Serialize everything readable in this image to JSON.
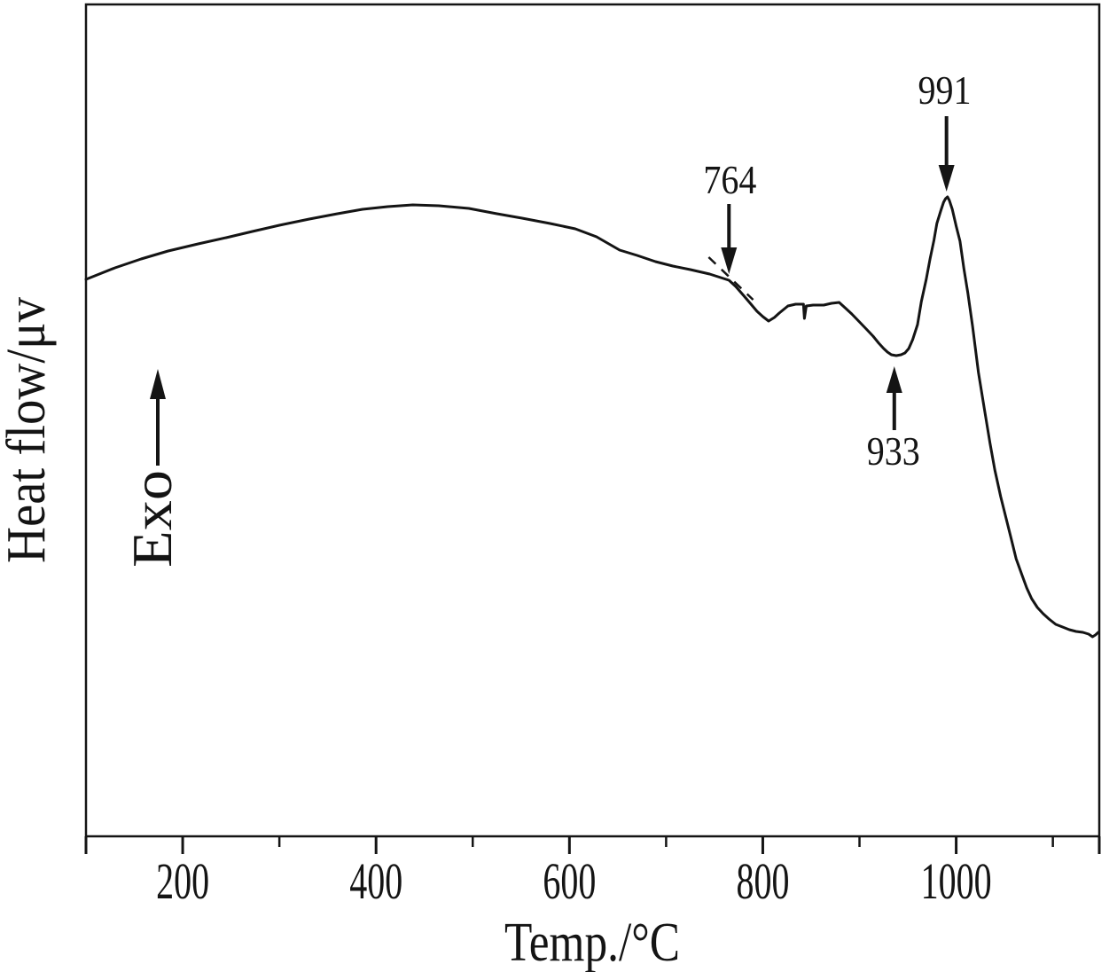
{
  "chart_data": {
    "type": "line",
    "title": "",
    "xlabel": "Temp./°C",
    "ylabel": "Heat flow/μv",
    "exo_label": "Exo",
    "ink": "#141414",
    "background": "#ffffff",
    "x_range": [
      100,
      1148
    ],
    "hf_range": [
      0,
      938
    ],
    "grid": false,
    "legend": false,
    "x_ticks_major": [
      200,
      400,
      600,
      800,
      1000
    ],
    "x_ticks_minor": [
      300,
      500,
      700,
      900,
      1100
    ],
    "edge_ticks": [
      100,
      1148
    ],
    "series": [
      {
        "name": "DTA heat-flow curve",
        "points": [
          [
            100,
            628
          ],
          [
            130,
            641
          ],
          [
            157,
            651
          ],
          [
            185,
            660
          ],
          [
            216,
            668
          ],
          [
            245,
            675
          ],
          [
            272,
            682
          ],
          [
            300,
            689
          ],
          [
            331,
            696
          ],
          [
            360,
            702
          ],
          [
            386,
            707
          ],
          [
            412,
            710
          ],
          [
            438,
            712
          ],
          [
            465,
            711
          ],
          [
            496,
            708
          ],
          [
            525,
            702
          ],
          [
            551,
            697
          ],
          [
            580,
            691
          ],
          [
            606,
            685
          ],
          [
            628,
            676
          ],
          [
            652,
            661
          ],
          [
            670,
            655
          ],
          [
            689,
            648
          ],
          [
            707,
            643
          ],
          [
            725,
            639
          ],
          [
            745,
            634
          ],
          [
            765,
            627
          ],
          [
            772,
            620
          ],
          [
            780,
            610
          ],
          [
            787,
            601
          ],
          [
            794,
            592
          ],
          [
            800,
            586
          ],
          [
            806,
            581
          ],
          [
            812,
            585
          ],
          [
            817,
            590
          ],
          [
            826,
            598
          ],
          [
            834,
            600
          ],
          [
            842,
            600
          ],
          [
            843,
            584
          ],
          [
            845,
            598
          ],
          [
            852,
            599
          ],
          [
            863,
            599
          ],
          [
            871,
            601
          ],
          [
            879,
            602
          ],
          [
            886,
            595
          ],
          [
            892,
            589
          ],
          [
            900,
            580
          ],
          [
            907,
            572
          ],
          [
            914,
            564
          ],
          [
            920,
            556
          ],
          [
            925,
            550
          ],
          [
            929,
            546
          ],
          [
            933,
            543
          ],
          [
            938,
            542
          ],
          [
            943,
            543
          ],
          [
            947,
            545
          ],
          [
            951,
            550
          ],
          [
            955,
            560
          ],
          [
            960,
            577
          ],
          [
            964,
            603
          ],
          [
            969,
            628
          ],
          [
            973,
            651
          ],
          [
            977,
            672
          ],
          [
            980,
            691
          ],
          [
            984,
            705
          ],
          [
            987,
            715
          ],
          [
            989,
            719
          ],
          [
            991,
            721
          ],
          [
            993,
            717
          ],
          [
            996,
            707
          ],
          [
            1000,
            688
          ],
          [
            1004,
            671
          ],
          [
            1008,
            640
          ],
          [
            1012,
            613
          ],
          [
            1017,
            575
          ],
          [
            1023,
            523
          ],
          [
            1029,
            483
          ],
          [
            1035,
            443
          ],
          [
            1040,
            413
          ],
          [
            1046,
            383
          ],
          [
            1052,
            357
          ],
          [
            1057,
            335
          ],
          [
            1062,
            313
          ],
          [
            1068,
            295
          ],
          [
            1073,
            280
          ],
          [
            1078,
            268
          ],
          [
            1084,
            258
          ],
          [
            1090,
            251
          ],
          [
            1096,
            245
          ],
          [
            1103,
            239
          ],
          [
            1110,
            236
          ],
          [
            1117,
            233
          ],
          [
            1124,
            231
          ],
          [
            1131,
            230
          ],
          [
            1137,
            228
          ],
          [
            1141,
            225
          ],
          [
            1144,
            227
          ],
          [
            1147,
            230
          ]
        ]
      }
    ],
    "annotations": [
      {
        "id": "onset",
        "label": "764",
        "label_T": 766,
        "label_HF": 740,
        "arrow_T": 765,
        "arrow_HF_from": 713,
        "arrow_HF_to": 634,
        "head": "down"
      },
      {
        "id": "endo-valley",
        "label": "933",
        "label_T": 935,
        "label_HF": 434,
        "arrow_T": 936,
        "arrow_HF_from": 458,
        "arrow_HF_to": 530,
        "head": "up"
      },
      {
        "id": "exo-peak",
        "label": "991",
        "label_T": 988,
        "label_HF": 841,
        "arrow_T": 990,
        "arrow_HF_from": 812,
        "arrow_HF_to": 727,
        "head": "down"
      }
    ],
    "tangent_dash": {
      "from": [
        744,
        653
      ],
      "to": [
        790,
        605
      ]
    }
  }
}
